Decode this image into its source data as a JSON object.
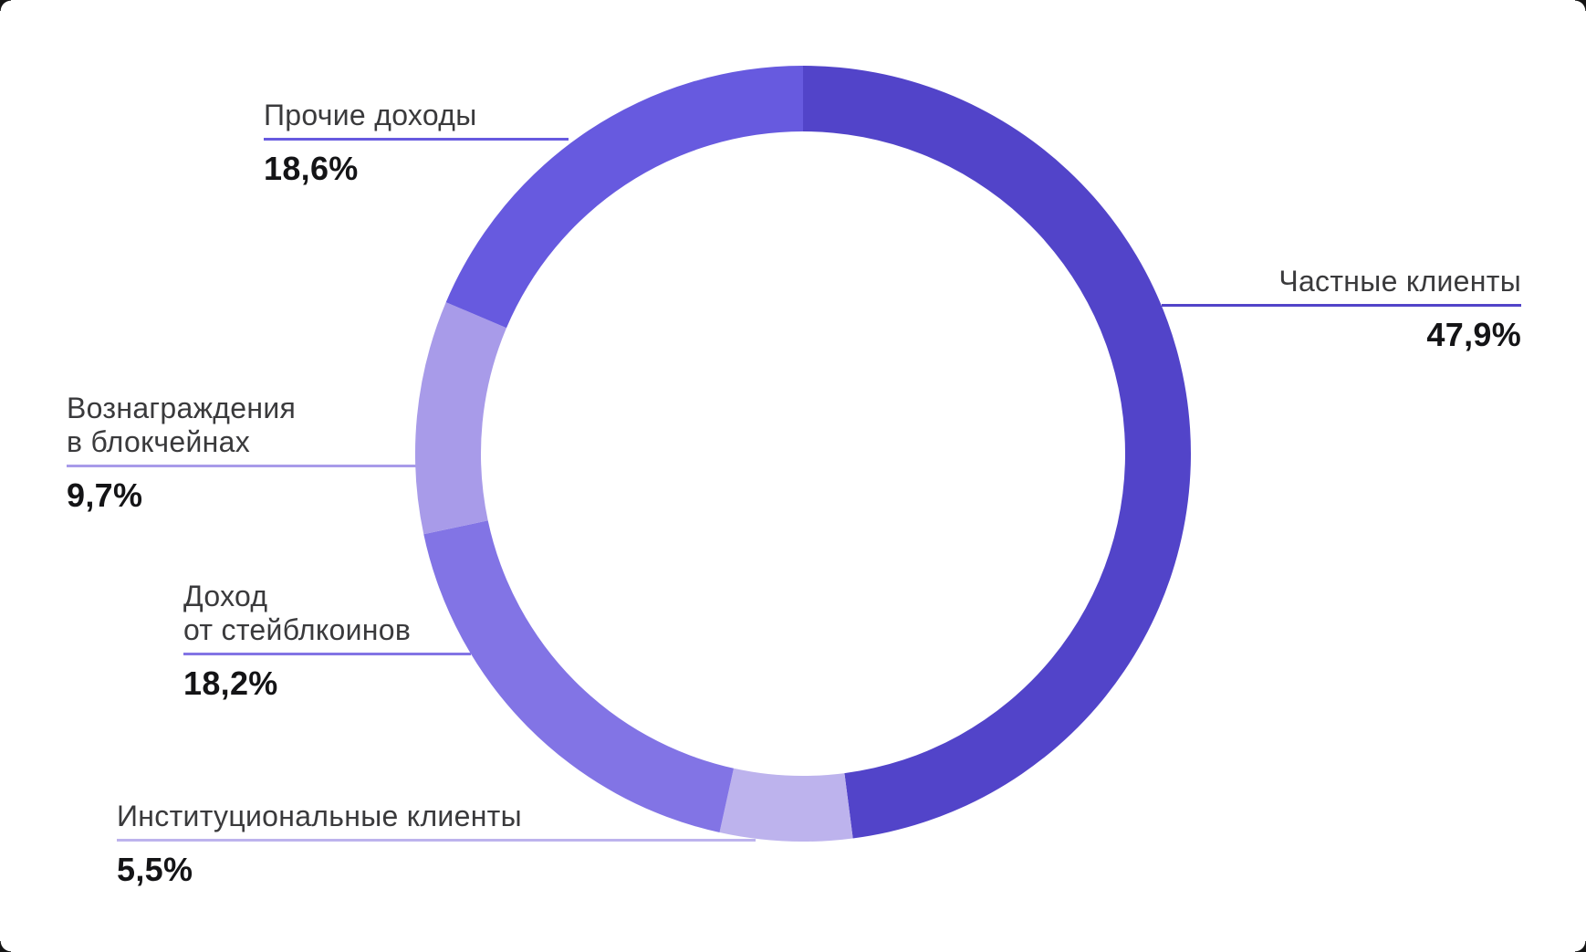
{
  "chart_data": {
    "type": "pie",
    "subtype": "donut",
    "title": "",
    "start_angle_deg": 0,
    "direction": "clockwise",
    "unit": "%",
    "decimal_separator": ",",
    "grid": false,
    "legend_position": "callouts",
    "series": [
      {
        "id": "chastnye",
        "label": "Частные клиенты",
        "value": 47.9,
        "display": "47,9%",
        "color": "#5244C9"
      },
      {
        "id": "instit",
        "label": "Институциональные клиенты",
        "value": 5.5,
        "display": "5,5%",
        "color": "#BDB3ED"
      },
      {
        "id": "dokhod",
        "label": "Доход от стейблкоинов",
        "value": 18.2,
        "display": "18,2%",
        "color": "#8274E5"
      },
      {
        "id": "voznagr",
        "label": "Вознаграждения в блокчейнах",
        "value": 9.7,
        "display": "9,7%",
        "color": "#A89BE9"
      },
      {
        "id": "prochie",
        "label": "Прочие доходы",
        "value": 18.6,
        "display": "18,6%",
        "color": "#675ADF"
      }
    ]
  },
  "callouts": {
    "prochie": {
      "label": "Прочие доходы",
      "value": "18,6%"
    },
    "chastnye": {
      "label": "Частные клиенты",
      "value": "47,9%"
    },
    "voznagr": {
      "label": "Вознаграждения\nв блокчейнах",
      "value": "9,7%"
    },
    "dokhod": {
      "label": "Доход\nот стейблкоинов",
      "value": "18,2%"
    },
    "instit": {
      "label": "Институциональные клиенты",
      "value": "5,5%"
    }
  },
  "colors": {
    "background": "#FFFFFF",
    "label_text": "#3A3A3C",
    "value_text": "#141416"
  }
}
